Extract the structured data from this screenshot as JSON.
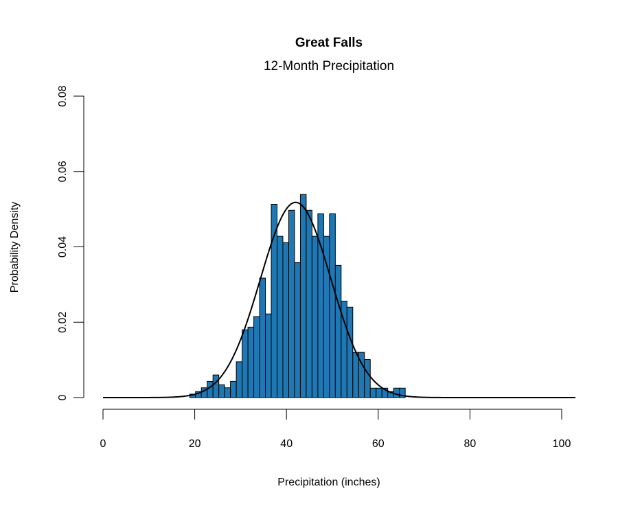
{
  "chart_data": {
    "type": "bar",
    "subtype": "histogram_with_density_curve",
    "title": "Great Falls",
    "subtitle": "12-Month Precipitation",
    "xlabel": "Precipitation (inches)",
    "ylabel": "Probability Density",
    "xlim": [
      0,
      100
    ],
    "ylim": [
      0,
      0.08
    ],
    "x_ticks": [
      0,
      20,
      40,
      60,
      80,
      100
    ],
    "x_tick_labels": [
      "0",
      "20",
      "40",
      "60",
      "80",
      "100"
    ],
    "y_ticks": [
      0,
      0.02,
      0.04,
      0.06,
      0.08
    ],
    "y_tick_labels": [
      "0",
      "0.02",
      "0.04",
      "0.06",
      "0.08"
    ],
    "grid": false,
    "legend": null,
    "bar_color": "#1f78b4",
    "bar_edge_color": "#000000",
    "curve_color": "#000000",
    "bin_start": 18.9,
    "bin_width": 1.27,
    "bins": [
      {
        "x0": 18.9,
        "density": 0.0009
      },
      {
        "x0": 20.17,
        "density": 0.0016
      },
      {
        "x0": 21.44,
        "density": 0.0026
      },
      {
        "x0": 22.71,
        "density": 0.0043
      },
      {
        "x0": 23.98,
        "density": 0.006
      },
      {
        "x0": 25.25,
        "density": 0.0034
      },
      {
        "x0": 26.52,
        "density": 0.0026
      },
      {
        "x0": 27.79,
        "density": 0.0043
      },
      {
        "x0": 29.06,
        "density": 0.0095
      },
      {
        "x0": 30.33,
        "density": 0.018
      },
      {
        "x0": 31.6,
        "density": 0.0187
      },
      {
        "x0": 32.87,
        "density": 0.0215
      },
      {
        "x0": 34.14,
        "density": 0.0317
      },
      {
        "x0": 35.41,
        "density": 0.0222
      },
      {
        "x0": 36.68,
        "density": 0.0513
      },
      {
        "x0": 37.95,
        "density": 0.0428
      },
      {
        "x0": 39.22,
        "density": 0.0411
      },
      {
        "x0": 40.49,
        "density": 0.0497
      },
      {
        "x0": 41.76,
        "density": 0.0358
      },
      {
        "x0": 43.03,
        "density": 0.0539
      },
      {
        "x0": 44.3,
        "density": 0.0497
      },
      {
        "x0": 45.57,
        "density": 0.0428
      },
      {
        "x0": 46.84,
        "density": 0.0488
      },
      {
        "x0": 48.11,
        "density": 0.0428
      },
      {
        "x0": 49.38,
        "density": 0.0488
      },
      {
        "x0": 50.65,
        "density": 0.0351
      },
      {
        "x0": 51.92,
        "density": 0.0256
      },
      {
        "x0": 53.19,
        "density": 0.024
      },
      {
        "x0": 54.46,
        "density": 0.012
      },
      {
        "x0": 55.73,
        "density": 0.012
      },
      {
        "x0": 57.0,
        "density": 0.0101
      },
      {
        "x0": 58.27,
        "density": 0.0025
      },
      {
        "x0": 59.54,
        "density": 0.0025
      },
      {
        "x0": 60.81,
        "density": 0.0025
      },
      {
        "x0": 62.08,
        "density": 0.0016
      },
      {
        "x0": 63.35,
        "density": 0.0025
      },
      {
        "x0": 64.62,
        "density": 0.0025
      }
    ],
    "density_curve": {
      "distribution": "normal",
      "mean": 42.0,
      "sd": 7.7,
      "peak_density": 0.052,
      "x_range": [
        0,
        103
      ]
    }
  }
}
